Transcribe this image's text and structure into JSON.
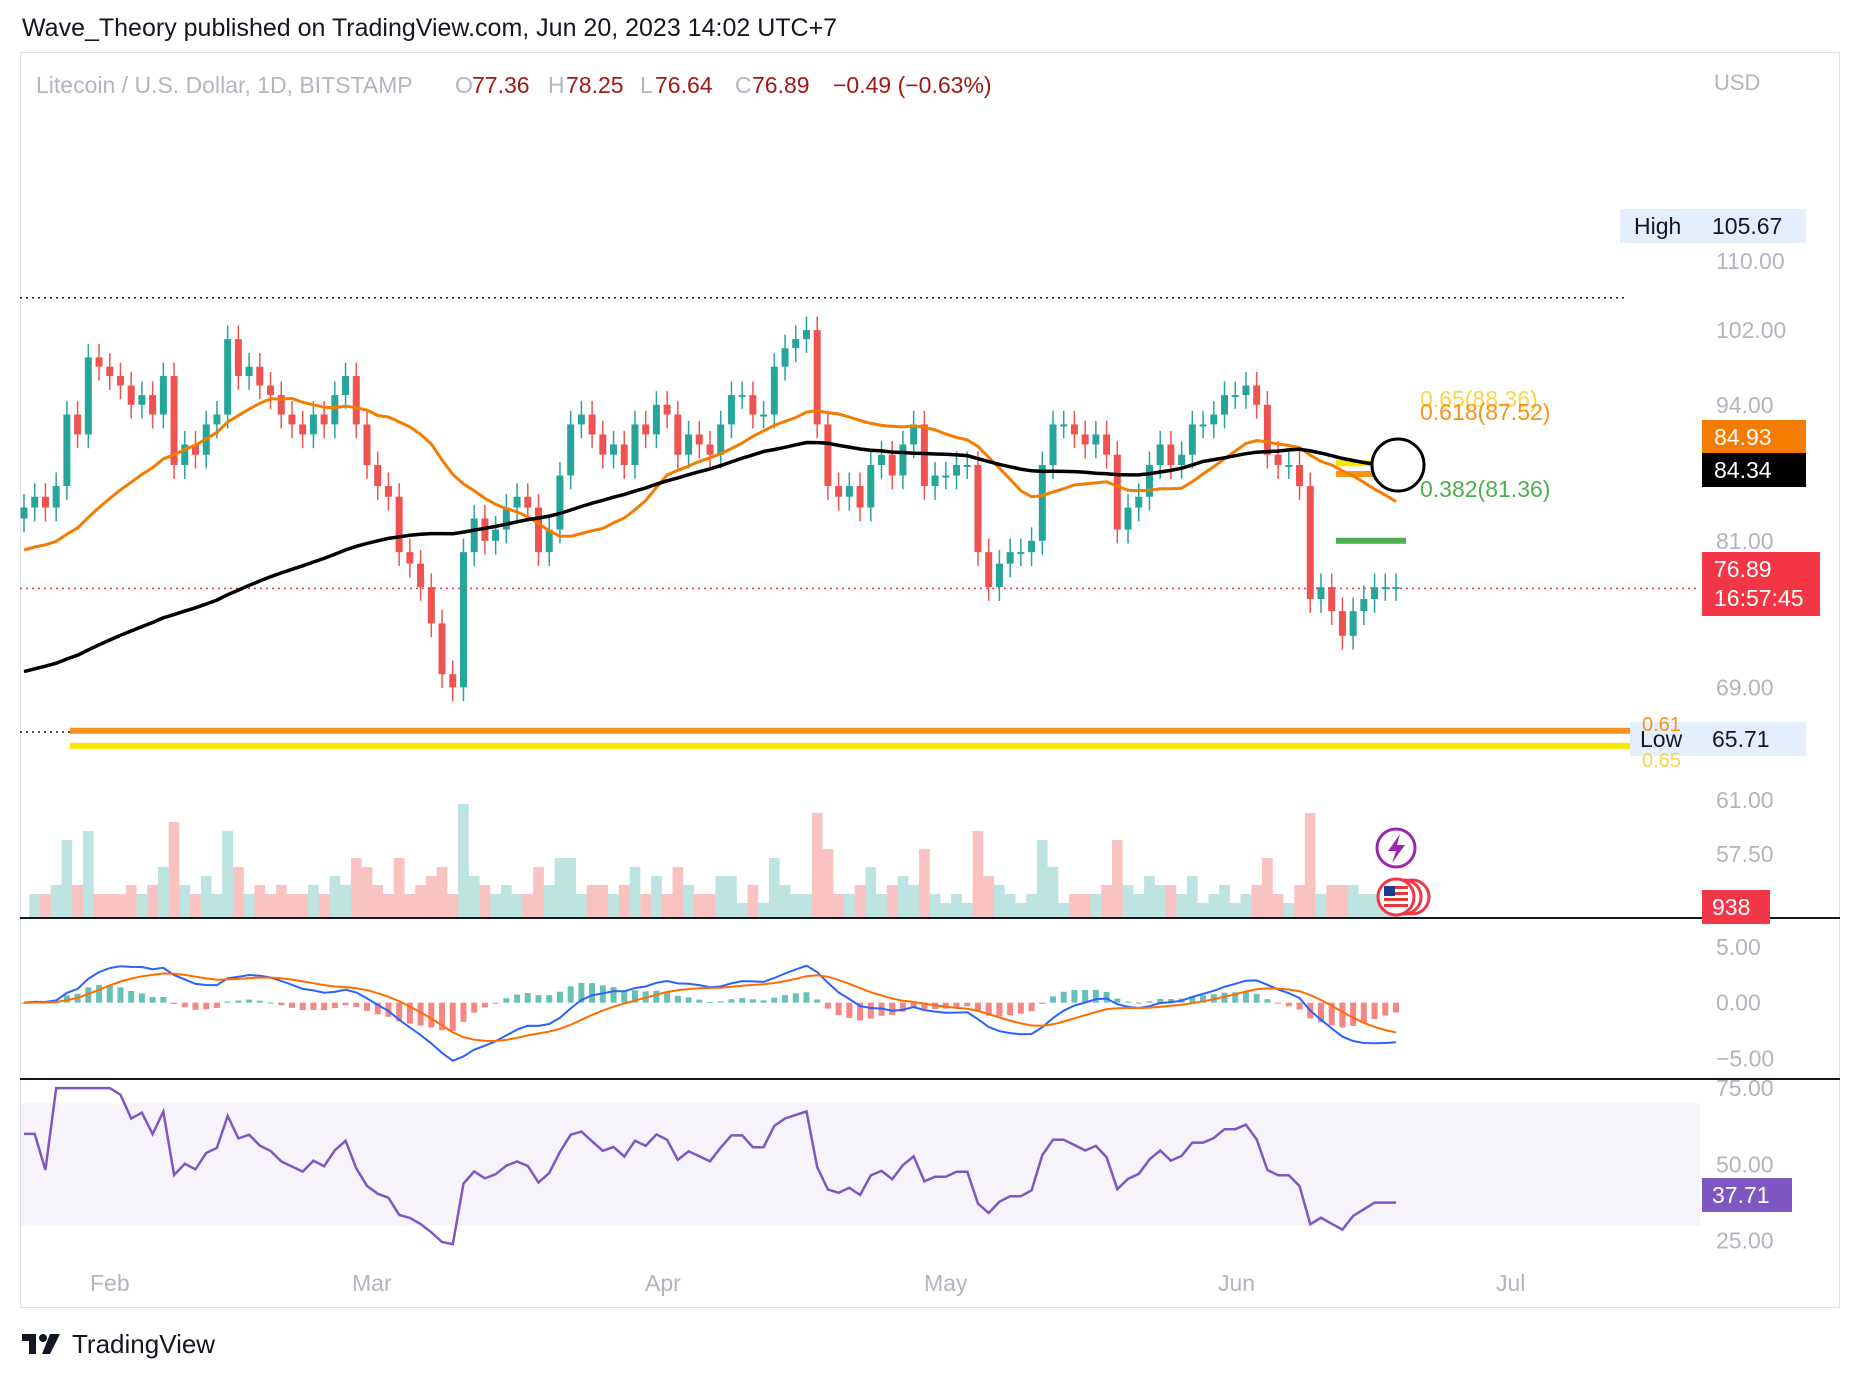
{
  "header": {
    "published": "Wave_Theory published on TradingView.com, Jun 20, 2023 14:02 UTC+7",
    "symbol": "Litecoin / U.S. Dollar, 1D, BITSTAMP",
    "o_label": "O",
    "o_value": "77.36",
    "h_label": "H",
    "h_value": "78.25",
    "l_label": "L",
    "l_value": "76.64",
    "c_label": "C",
    "c_value": "76.89",
    "change": "−0.49 (−0.63%)",
    "currency": "USD"
  },
  "footer": {
    "brand": "TradingView",
    "logo_icon": "tradingview-logo-icon"
  },
  "colors": {
    "up": "#26a69a",
    "down": "#ef5350",
    "ma_short": "#f57c00",
    "ma_long": "#000000",
    "fib_618": "#f7931a",
    "fib_65": "#f7e600",
    "fib_382": "#4caf50",
    "rsi": "#7e57c2",
    "macd": "#2962ff",
    "signal": "#ff6d00"
  },
  "chart_data": [
    {
      "type": "candlestick",
      "symbol": "Litecoin / U.S. Dollar",
      "timeframe": "1D",
      "x_labels": [
        "Feb",
        "Mar",
        "Apr",
        "May",
        "Jun",
        "Jul"
      ],
      "y_ticks": [
        "110.00",
        "102.00",
        "94.00",
        "81.00",
        "69.00",
        "61.00",
        "57.50"
      ],
      "scale": "log",
      "ylim": [
        56.5,
        121
      ],
      "ohlc_close_series": [
        84,
        85,
        84,
        86,
        93,
        91,
        99,
        98,
        97,
        96,
        94,
        95,
        93,
        97,
        88,
        90,
        89,
        92,
        93,
        101,
        97,
        98,
        96,
        95,
        93,
        92,
        91,
        93,
        92,
        95,
        97,
        92,
        88,
        86,
        85,
        80,
        79,
        77,
        74,
        70,
        69,
        80,
        83,
        81,
        82,
        84,
        85,
        84,
        80,
        82,
        87,
        92,
        93,
        91,
        89,
        90,
        88,
        92,
        91,
        94,
        93,
        89,
        91,
        90,
        89,
        92,
        95,
        95,
        93,
        93,
        98,
        100,
        101,
        102,
        92,
        86,
        85,
        86,
        84,
        88,
        89,
        87,
        90,
        92,
        86,
        87,
        87,
        88,
        88,
        80,
        77,
        79,
        80,
        80,
        81,
        88,
        92,
        92,
        91,
        90,
        91,
        89,
        82,
        84,
        85,
        88,
        90,
        88,
        89,
        92,
        92,
        93,
        95,
        95,
        96,
        94,
        89,
        88,
        88,
        86,
        76,
        77,
        75,
        73,
        75,
        76,
        77,
        77,
        77
      ],
      "annotations": [
        {
          "label": "High",
          "value": "105.67"
        },
        {
          "label": "Low",
          "value": "65.71"
        },
        {
          "label": "0.65(88.36)",
          "value": 88.36
        },
        {
          "label": "0.618(87.52)",
          "value": 87.52
        },
        {
          "label": "0.382(81.36)",
          "value": 81.36
        },
        {
          "label": "0.61",
          "value": 65.8
        },
        {
          "label": "0.65",
          "value": 65.0
        }
      ],
      "moving_averages": [
        {
          "value_label": "84.93",
          "last": 84.93
        },
        {
          "value_label": "84.34",
          "last": 84.34
        }
      ],
      "last_price": {
        "value": "76.89",
        "countdown": "16:57:45"
      },
      "volume_label": "938"
    },
    {
      "type": "line",
      "indicator": "MACD",
      "y_ticks": [
        "5.00",
        "0.00",
        "−5.00"
      ],
      "ylim": [
        -6.2,
        6.5
      ]
    },
    {
      "type": "line",
      "indicator": "RSI",
      "y_ticks": [
        "75.00",
        "50.00",
        "25.00"
      ],
      "ylim": [
        18,
        77
      ],
      "band": [
        30,
        70
      ],
      "last": "37.71"
    }
  ],
  "icons": {
    "flash": "lightning-icon",
    "event": "us-flag-icon"
  }
}
